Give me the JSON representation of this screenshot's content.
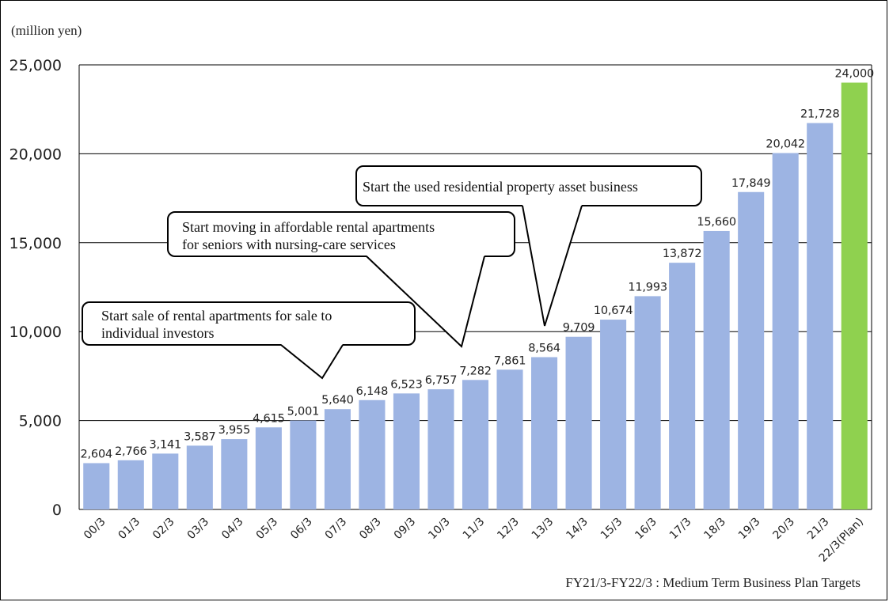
{
  "chart_data": {
    "type": "bar",
    "unit_label": "(million yen)",
    "categories": [
      "00/3",
      "01/3",
      "02/3",
      "03/3",
      "04/3",
      "05/3",
      "06/3",
      "07/3",
      "08/3",
      "09/3",
      "10/3",
      "11/3",
      "12/3",
      "13/3",
      "14/3",
      "15/3",
      "16/3",
      "17/3",
      "18/3",
      "19/3",
      "20/3",
      "21/3",
      "22/3(Plan)"
    ],
    "value_labels": [
      "2,604",
      "2,766",
      "3,141",
      "3,587",
      "3,955",
      "4,615",
      "5,001",
      "5,640",
      "6,148",
      "6,523",
      "6,757",
      "7,282",
      "7,861",
      "8,564",
      "9,709",
      "10,674",
      "11,993",
      "13,872",
      "15,660",
      "17,849",
      "20,042",
      "21,728",
      "24,000"
    ],
    "values": [
      2604,
      2766,
      3141,
      3587,
      3955,
      4615,
      5001,
      5640,
      6148,
      6523,
      6757,
      7282,
      7861,
      8564,
      9709,
      10674,
      11993,
      13872,
      15660,
      17849,
      20042,
      21728,
      24000
    ],
    "ylim": [
      0,
      25000
    ],
    "yticks": [
      0,
      5000,
      10000,
      15000,
      20000,
      25000
    ],
    "ytick_labels": [
      "0",
      "5,000",
      "10,000",
      "15,000",
      "20,000",
      "25,000"
    ],
    "grid": true,
    "colors": {
      "bar": "#9db4e3",
      "plan_bar": "#8fd14f",
      "grid": "#000000"
    },
    "annotations": [
      {
        "lines": [
          "Start sale of rental apartments for sale to",
          "individual investors"
        ],
        "points_to": "07/3"
      },
      {
        "lines": [
          "Start moving in affordable rental apartments",
          "for seniors with nursing-care services"
        ],
        "points_to": "11/3"
      },
      {
        "lines": [
          "Start the used residential property asset business"
        ],
        "points_to": "13/3"
      }
    ],
    "footnote": "FY21/3-FY22/3 : Medium Term Business Plan Targets"
  }
}
